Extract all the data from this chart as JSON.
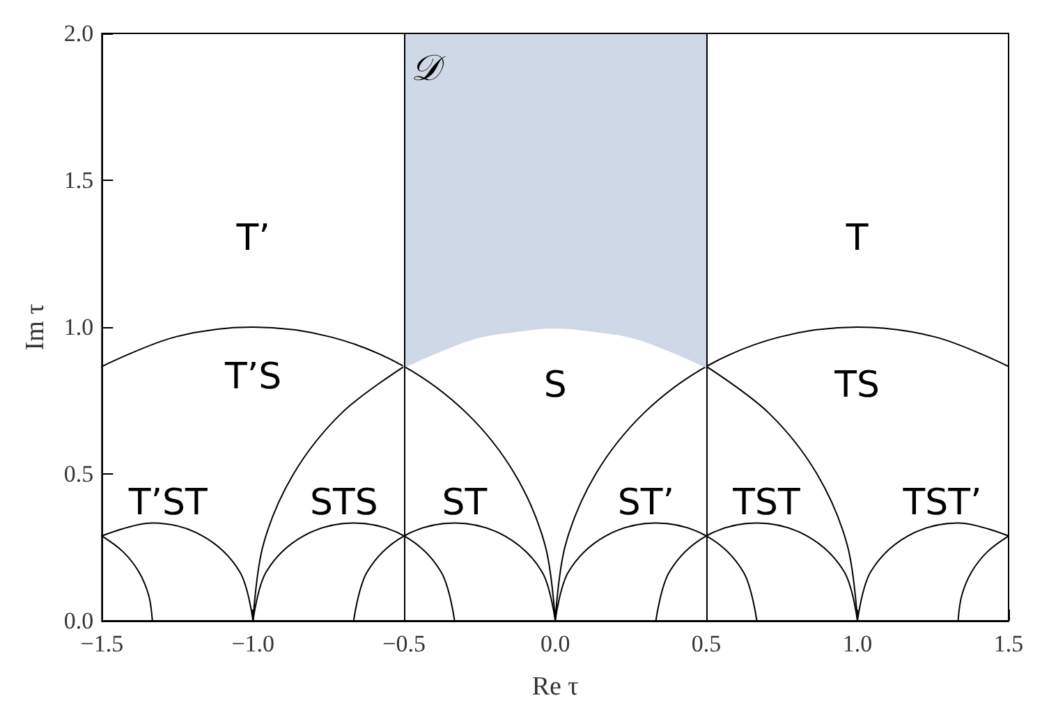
{
  "chart_data": {
    "type": "line",
    "xlabel": "Re τ",
    "ylabel": "Im τ",
    "xlim": [
      -1.5,
      1.5
    ],
    "xticks": [
      {
        "value": -1.5,
        "label": "−1.5"
      },
      {
        "value": -1,
        "label": "−1.0"
      },
      {
        "value": -0.5,
        "label": "−0.5"
      },
      {
        "value": 0,
        "label": "0.0"
      },
      {
        "value": 0.5,
        "label": "0.5"
      },
      {
        "value": 1,
        "label": "1.0"
      },
      {
        "value": 1.5,
        "label": "1.5"
      }
    ],
    "ylim": [
      0,
      2
    ],
    "yticks": [
      {
        "value": 0,
        "label": "0.0"
      },
      {
        "value": 0.5,
        "label": "0.5"
      },
      {
        "value": 1,
        "label": "1.0"
      },
      {
        "value": 1.5,
        "label": "1.5"
      },
      {
        "value": 2,
        "label": "2.0"
      }
    ],
    "grid": false,
    "marker": "none",
    "line_style": "solid",
    "series": [
      {
        "color": "#000000",
        "x": [
          -1,
          -0.966,
          -0.866,
          -0.707,
          -0.5
        ],
        "values": [
          0,
          0.259,
          0.5,
          0.707,
          0.866
        ]
      },
      {
        "color": "#000000",
        "x": [
          0.5,
          0.707,
          0.866,
          0.966,
          1
        ],
        "values": [
          0.866,
          0.707,
          0.5,
          0.259,
          0
        ]
      },
      {
        "color": "#000000",
        "x": [
          -1.5,
          -1.259,
          -1,
          -0.741,
          -0.5,
          -0.293,
          -0.134,
          -0.034,
          0
        ],
        "values": [
          0.866,
          0.966,
          1,
          0.966,
          0.866,
          0.707,
          0.5,
          0.259,
          0
        ]
      },
      {
        "color": "#000000",
        "x": [
          0,
          0.034,
          0.134,
          0.293,
          0.5,
          0.741,
          1,
          1.259,
          1.5
        ],
        "values": [
          0,
          0.259,
          0.5,
          0.707,
          0.866,
          0.966,
          1,
          0.966,
          0.866
        ]
      },
      {
        "color": "#000000",
        "x": [
          -1,
          -0.956,
          -0.833,
          -0.667,
          -0.5,
          -0.378,
          -0.333
        ],
        "values": [
          0,
          0.167,
          0.289,
          0.333,
          0.289,
          0.167,
          0
        ]
      },
      {
        "color": "#000000",
        "x": [
          -0.667,
          -0.622,
          -0.5,
          -0.333,
          -0.167,
          -0.044,
          0
        ],
        "values": [
          0,
          0.167,
          0.289,
          0.333,
          0.289,
          0.167,
          0
        ]
      },
      {
        "color": "#000000",
        "x": [
          0,
          0.044,
          0.167,
          0.333,
          0.5,
          0.622,
          0.667
        ],
        "values": [
          0,
          0.167,
          0.289,
          0.333,
          0.289,
          0.167,
          0
        ]
      },
      {
        "color": "#000000",
        "x": [
          0.333,
          0.378,
          0.5,
          0.667,
          0.833,
          0.956,
          1
        ],
        "values": [
          0,
          0.167,
          0.289,
          0.333,
          0.289,
          0.167,
          0
        ]
      },
      {
        "color": "#000000",
        "x": [
          -1.5,
          -1.333,
          -1.167,
          -1.044,
          -1
        ],
        "values": [
          0.289,
          0.333,
          0.289,
          0.167,
          0
        ]
      },
      {
        "color": "#000000",
        "x": [
          1,
          1.044,
          1.167,
          1.333,
          1.5
        ],
        "values": [
          0,
          0.167,
          0.289,
          0.333,
          0.289
        ]
      },
      {
        "color": "#000000",
        "x": [
          -1.5,
          -1.431,
          -1.378,
          -1.345,
          -1.333
        ],
        "values": [
          0.289,
          0.236,
          0.167,
          0.086,
          0
        ]
      },
      {
        "color": "#000000",
        "x": [
          1.333,
          1.345,
          1.378,
          1.431,
          1.5
        ],
        "values": [
          0,
          0.086,
          0.167,
          0.236,
          0.289
        ]
      },
      {
        "color": "#cfd8e7",
        "x": [
          -0.5,
          -0.259,
          0,
          0.259,
          0.5
        ],
        "values": [
          0.866,
          0.966,
          1,
          0.966,
          0.866
        ],
        "lower": [
          0.866,
          0.966,
          1,
          0.966,
          0.866
        ],
        "upper": [
          2,
          2,
          2,
          2,
          2
        ]
      }
    ],
    "ref_lines": [
      {
        "axis": "x",
        "value": -0.5,
        "label": null
      },
      {
        "axis": "x",
        "value": 0.5,
        "label": null
      }
    ],
    "annotations": [
      "𝒟",
      "T’",
      "T",
      "T’S",
      "S",
      "TS",
      "T’ST",
      "STS",
      "ST",
      "ST’",
      "TST",
      "TST’"
    ]
  }
}
